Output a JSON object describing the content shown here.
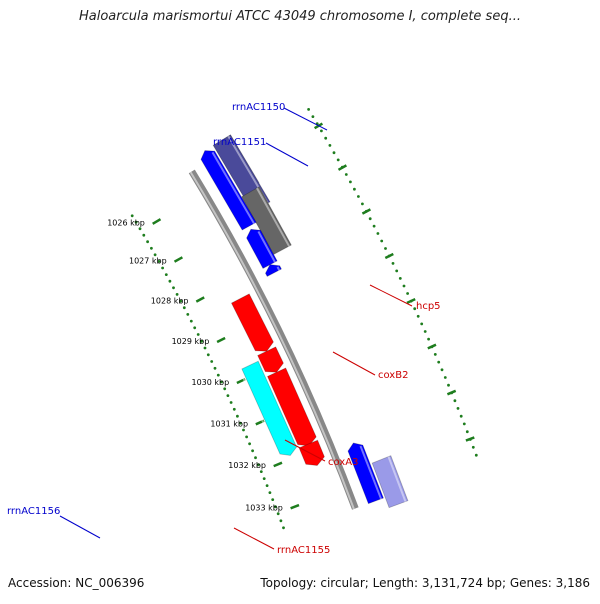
{
  "title": "Haloarcula marismortui ATCC 43049 chromosome I, complete seq...",
  "accession": "Accession: NC_006396",
  "summary": "Topology: circular; Length: 3,131,724 bp; Genes: 3,186",
  "colors": {
    "backbone": "#888888",
    "tick": "#1e7d1e",
    "forward_gene": "#ff0000",
    "reverse_gene": "#0000ff",
    "cds_cyan": "#00ffff",
    "feature_gray": "#666666",
    "feature_purple": "#4a4a9a",
    "label_blue": "#0000cc",
    "label_red": "#cc0000"
  },
  "ticks": [
    "1026 kbp",
    "1027 kbp",
    "1028 kbp",
    "1029 kbp",
    "1030 kbp",
    "1031 kbp",
    "1032 kbp",
    "1033 kbp"
  ],
  "genes": [
    {
      "label": "rrnAC1150",
      "strand": "reverse",
      "color": "#0000cc"
    },
    {
      "label": "rrnAC1151",
      "strand": "reverse",
      "color": "#0000cc"
    },
    {
      "label": "hcp5",
      "strand": "forward",
      "color": "#cc0000"
    },
    {
      "label": "coxB2",
      "strand": "forward",
      "color": "#cc0000"
    },
    {
      "label": "coxA3",
      "strand": "forward",
      "color": "#cc0000"
    },
    {
      "label": "rrnAC1156",
      "strand": "reverse",
      "color": "#0000cc"
    },
    {
      "label": "rrnAC1155",
      "strand": "forward",
      "color": "#cc0000"
    }
  ]
}
